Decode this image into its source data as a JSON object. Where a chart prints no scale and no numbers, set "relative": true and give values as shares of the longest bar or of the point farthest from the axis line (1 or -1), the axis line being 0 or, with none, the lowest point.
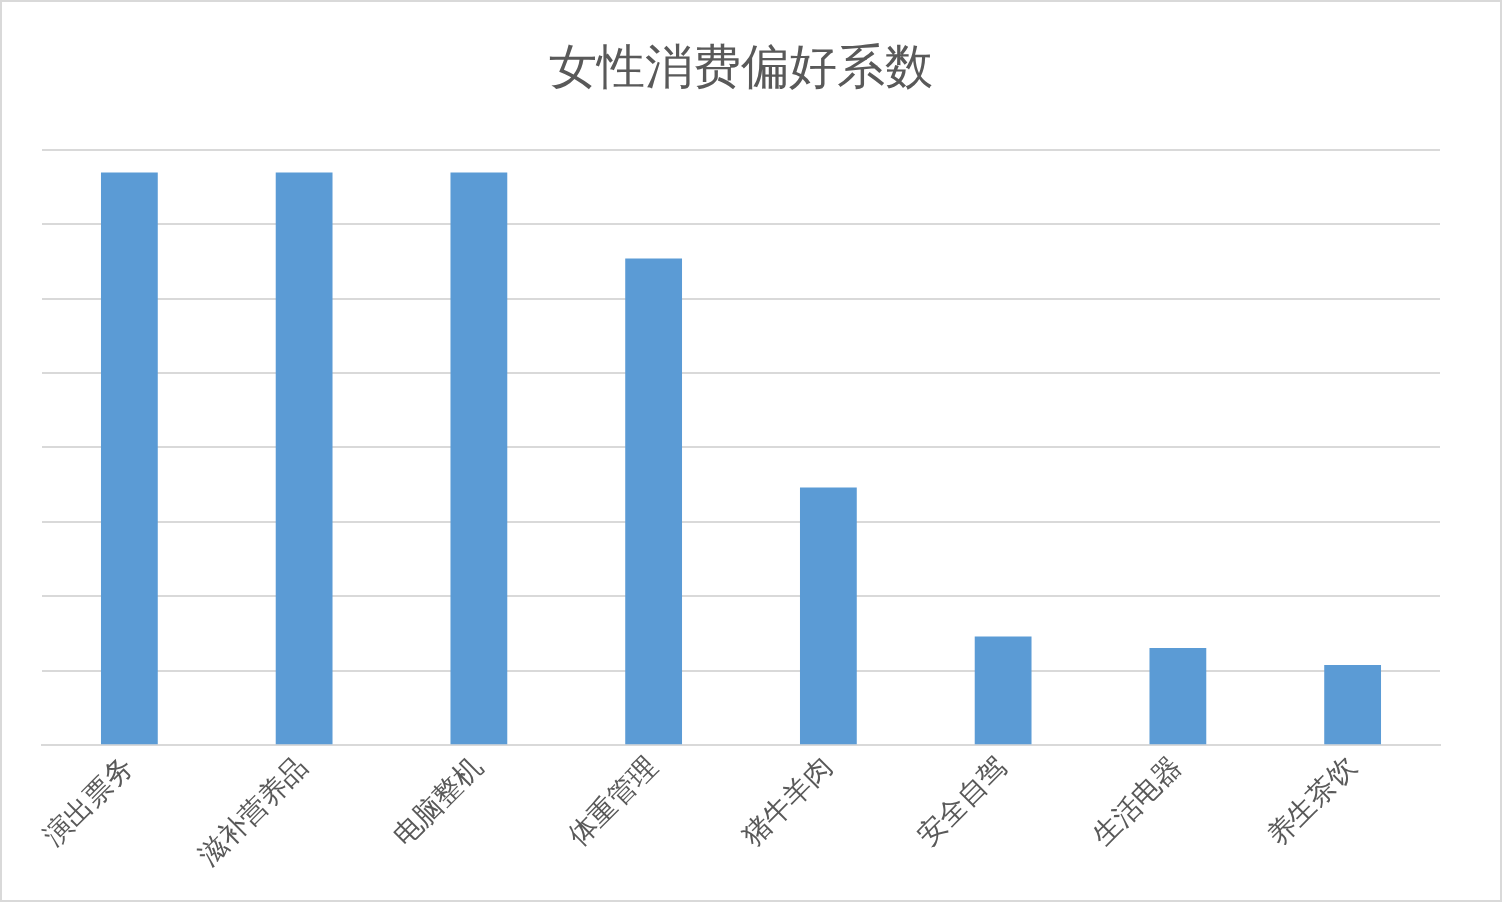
{
  "chart_data": {
    "type": "bar",
    "title": "女性消费偏好系数",
    "relative": true,
    "grid": "y",
    "color": "#5b9bd5",
    "categories": [
      "演出票务",
      "滋补营养品",
      "电脑整机",
      "体重管理",
      "猪牛羊肉",
      "安全自驾",
      "生活电器",
      "养生茶饮"
    ],
    "values": [
      1,
      1,
      1,
      0.85,
      0.45,
      0.19,
      0.17,
      0.14
    ]
  }
}
